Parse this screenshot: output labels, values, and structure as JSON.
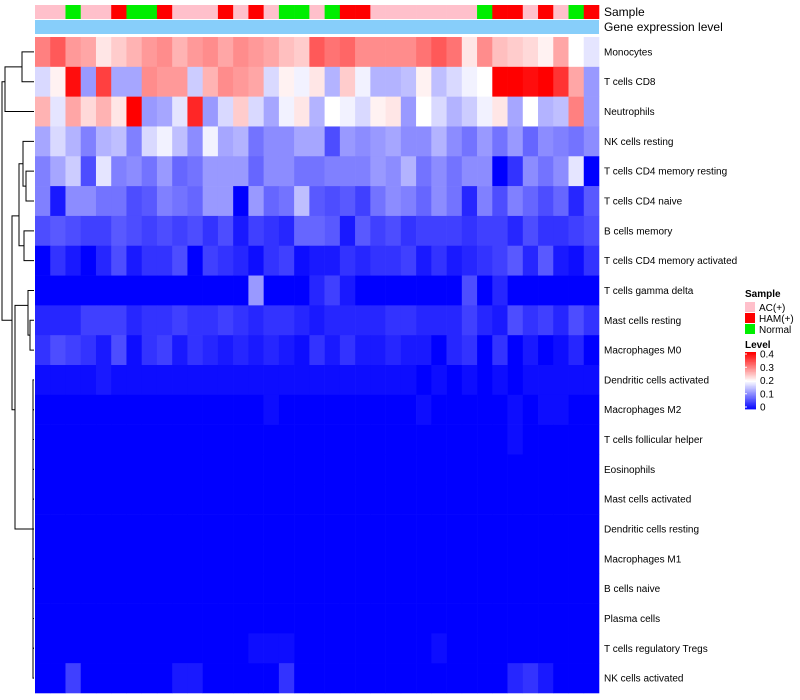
{
  "chart_data": {
    "type": "heatmap",
    "title": "",
    "annotation_labels": {
      "sample": "Sample",
      "gene_expression": "Gene expression level"
    },
    "rows": [
      "Monocytes",
      "T cells CD8",
      "Neutrophils",
      "NK cells resting",
      "T cells CD4 memory resting",
      "T cells CD4 naive",
      "B cells memory",
      "T cells CD4 memory activated",
      "T cells gamma delta",
      "Mast cells resting",
      "Macrophages M0",
      "Dendritic cells activated",
      "Macrophages M2",
      "T cells follicular helper",
      "Eosinophils",
      "Mast cells activated",
      "Dendritic cells resting",
      "Macrophages M1",
      "B cells naive",
      "Plasma cells",
      "T cells regulatory  Tregs",
      "NK cells activated"
    ],
    "sample_groups": [
      "AC(+)",
      "AC(+)",
      "Normal",
      "AC(+)",
      "AC(+)",
      "HAM(+)",
      "Normal",
      "Normal",
      "HAM(+)",
      "AC(+)",
      "AC(+)",
      "AC(+)",
      "HAM(+)",
      "AC(+)",
      "HAM(+)",
      "AC(+)",
      "Normal",
      "Normal",
      "AC(+)",
      "Normal",
      "HAM(+)",
      "HAM(+)",
      "AC(+)",
      "AC(+)",
      "AC(+)",
      "AC(+)",
      "AC(+)",
      "AC(+)",
      "AC(+)",
      "Normal",
      "HAM(+)",
      "HAM(+)",
      "AC(+)",
      "HAM(+)",
      "AC(+)",
      "Normal",
      "HAM(+)"
    ],
    "values": [
      [
        0.3,
        0.33,
        0.28,
        0.27,
        0.22,
        0.24,
        0.26,
        0.28,
        0.29,
        0.26,
        0.28,
        0.29,
        0.27,
        0.29,
        0.28,
        0.27,
        0.25,
        0.24,
        0.33,
        0.31,
        0.32,
        0.29,
        0.29,
        0.29,
        0.29,
        0.31,
        0.33,
        0.31,
        0.22,
        0.29,
        0.25,
        0.24,
        0.23,
        0.21,
        0.27,
        0.2,
        0.18
      ],
      [
        0.17,
        0.21,
        0.39,
        0.12,
        0.35,
        0.13,
        0.13,
        0.29,
        0.28,
        0.28,
        0.16,
        0.26,
        0.29,
        0.28,
        0.27,
        0.17,
        0.21,
        0.19,
        0.22,
        0.14,
        0.24,
        0.19,
        0.14,
        0.14,
        0.15,
        0.21,
        0.15,
        0.17,
        0.19,
        0.2,
        0.4,
        0.4,
        0.39,
        0.4,
        0.36,
        0.27,
        0.12
      ],
      [
        0.26,
        0.18,
        0.27,
        0.23,
        0.26,
        0.22,
        0.4,
        0.12,
        0.13,
        0.18,
        0.37,
        0.12,
        0.17,
        0.24,
        0.17,
        0.13,
        0.19,
        0.22,
        0.14,
        0.2,
        0.19,
        0.17,
        0.21,
        0.22,
        0.12,
        0.2,
        0.17,
        0.14,
        0.16,
        0.19,
        0.22,
        0.13,
        0.2,
        0.14,
        0.15,
        0.3,
        0.12
      ],
      [
        0.13,
        0.17,
        0.14,
        0.1,
        0.14,
        0.15,
        0.1,
        0.17,
        0.19,
        0.15,
        0.11,
        0.19,
        0.13,
        0.14,
        0.09,
        0.11,
        0.11,
        0.13,
        0.13,
        0.06,
        0.12,
        0.11,
        0.12,
        0.13,
        0.11,
        0.11,
        0.14,
        0.11,
        0.09,
        0.12,
        0.09,
        0.12,
        0.08,
        0.11,
        0.1,
        0.09,
        0.11
      ],
      [
        0.1,
        0.13,
        0.16,
        0.06,
        0.18,
        0.1,
        0.11,
        0.09,
        0.12,
        0.08,
        0.09,
        0.12,
        0.12,
        0.12,
        0.08,
        0.11,
        0.11,
        0.09,
        0.09,
        0.1,
        0.1,
        0.1,
        0.12,
        0.11,
        0.14,
        0.09,
        0.11,
        0.09,
        0.11,
        0.11,
        0.0,
        0.04,
        0.11,
        0.09,
        0.11,
        0.18,
        0.0
      ],
      [
        0.1,
        0.02,
        0.11,
        0.11,
        0.09,
        0.09,
        0.06,
        0.07,
        0.1,
        0.09,
        0.08,
        0.12,
        0.12,
        0.0,
        0.12,
        0.08,
        0.09,
        0.15,
        0.07,
        0.06,
        0.07,
        0.05,
        0.09,
        0.11,
        0.1,
        0.08,
        0.11,
        0.09,
        0.03,
        0.1,
        0.06,
        0.1,
        0.08,
        0.06,
        0.08,
        0.03,
        0.07
      ],
      [
        0.06,
        0.07,
        0.06,
        0.05,
        0.05,
        0.07,
        0.06,
        0.05,
        0.06,
        0.05,
        0.06,
        0.04,
        0.06,
        0.02,
        0.05,
        0.04,
        0.03,
        0.08,
        0.08,
        0.07,
        0.02,
        0.07,
        0.05,
        0.06,
        0.04,
        0.05,
        0.05,
        0.05,
        0.04,
        0.05,
        0.05,
        0.03,
        0.06,
        0.04,
        0.04,
        0.05,
        0.06
      ],
      [
        0.0,
        0.04,
        0.02,
        0.0,
        0.03,
        0.06,
        0.02,
        0.04,
        0.04,
        0.06,
        0.0,
        0.05,
        0.04,
        0.03,
        0.01,
        0.04,
        0.05,
        0.01,
        0.02,
        0.02,
        0.04,
        0.03,
        0.04,
        0.04,
        0.05,
        0.02,
        0.04,
        0.02,
        0.03,
        0.04,
        0.05,
        0.07,
        0.03,
        0.07,
        0.02,
        0.01,
        0.04
      ],
      [
        0.0,
        0.0,
        0.0,
        0.0,
        0.0,
        0.0,
        0.0,
        0.0,
        0.0,
        0.0,
        0.0,
        0.0,
        0.0,
        0.0,
        0.12,
        0.0,
        0.0,
        0.0,
        0.03,
        0.05,
        0.02,
        0.0,
        0.0,
        0.0,
        0.0,
        0.0,
        0.0,
        0.0,
        0.06,
        0.0,
        0.03,
        0.0,
        0.0,
        0.0,
        0.0,
        0.0,
        0.0
      ],
      [
        0.03,
        0.03,
        0.03,
        0.05,
        0.05,
        0.05,
        0.03,
        0.04,
        0.04,
        0.05,
        0.04,
        0.04,
        0.05,
        0.04,
        0.03,
        0.04,
        0.04,
        0.03,
        0.02,
        0.03,
        0.03,
        0.03,
        0.03,
        0.04,
        0.04,
        0.03,
        0.03,
        0.03,
        0.05,
        0.03,
        0.02,
        0.06,
        0.04,
        0.05,
        0.03,
        0.06,
        0.04
      ],
      [
        0.04,
        0.06,
        0.05,
        0.04,
        0.02,
        0.06,
        0.01,
        0.04,
        0.05,
        0.02,
        0.04,
        0.03,
        0.02,
        0.03,
        0.02,
        0.03,
        0.02,
        0.01,
        0.04,
        0.02,
        0.04,
        0.02,
        0.02,
        0.03,
        0.02,
        0.02,
        0.0,
        0.03,
        0.04,
        0.0,
        0.04,
        0.0,
        0.02,
        0.0,
        0.01,
        0.03,
        0.0
      ],
      [
        0.01,
        0.01,
        0.01,
        0.01,
        0.02,
        0.01,
        0.01,
        0.01,
        0.01,
        0.01,
        0.01,
        0.01,
        0.01,
        0.01,
        0.01,
        0.01,
        0.01,
        0.01,
        0.01,
        0.01,
        0.01,
        0.01,
        0.01,
        0.01,
        0.01,
        0.0,
        0.01,
        0.0,
        0.01,
        0.0,
        0.01,
        0.0,
        0.01,
        0.01,
        0.01,
        0.01,
        0.01
      ],
      [
        0.0,
        0.0,
        0.0,
        0.0,
        0.0,
        0.0,
        0.0,
        0.0,
        0.0,
        0.0,
        0.0,
        0.0,
        0.0,
        0.0,
        0.0,
        0.01,
        0.0,
        0.0,
        0.0,
        0.0,
        0.0,
        0.0,
        0.0,
        0.0,
        0.0,
        0.01,
        0.0,
        0.0,
        0.0,
        0.0,
        0.0,
        0.01,
        0.0,
        0.01,
        0.01,
        0.0,
        0.0
      ],
      [
        0.0,
        0.0,
        0.0,
        0.0,
        0.0,
        0.0,
        0.0,
        0.0,
        0.0,
        0.0,
        0.0,
        0.0,
        0.0,
        0.0,
        0.0,
        0.0,
        0.0,
        0.0,
        0.0,
        0.0,
        0.0,
        0.0,
        0.0,
        0.0,
        0.0,
        0.0,
        0.0,
        0.0,
        0.0,
        0.0,
        0.0,
        0.01,
        0.0,
        0.0,
        0.0,
        0.0,
        0.0
      ],
      [
        0.0,
        0.0,
        0.0,
        0.0,
        0.0,
        0.0,
        0.0,
        0.0,
        0.0,
        0.0,
        0.0,
        0.0,
        0.0,
        0.0,
        0.0,
        0.0,
        0.0,
        0.0,
        0.0,
        0.0,
        0.0,
        0.0,
        0.0,
        0.0,
        0.0,
        0.0,
        0.0,
        0.0,
        0.0,
        0.0,
        0.0,
        0.0,
        0.0,
        0.0,
        0.0,
        0.0,
        0.0
      ],
      [
        0.0,
        0.0,
        0.0,
        0.0,
        0.0,
        0.0,
        0.0,
        0.0,
        0.0,
        0.0,
        0.0,
        0.0,
        0.0,
        0.0,
        0.0,
        0.0,
        0.0,
        0.0,
        0.0,
        0.0,
        0.0,
        0.0,
        0.0,
        0.0,
        0.0,
        0.0,
        0.0,
        0.0,
        0.0,
        0.0,
        0.0,
        0.0,
        0.0,
        0.0,
        0.0,
        0.0,
        0.0
      ],
      [
        0.0,
        0.0,
        0.0,
        0.0,
        0.0,
        0.0,
        0.0,
        0.0,
        0.0,
        0.0,
        0.0,
        0.0,
        0.0,
        0.0,
        0.0,
        0.0,
        0.0,
        0.0,
        0.0,
        0.0,
        0.0,
        0.0,
        0.0,
        0.0,
        0.0,
        0.0,
        0.0,
        0.0,
        0.0,
        0.0,
        0.0,
        0.0,
        0.0,
        0.0,
        0.0,
        0.0,
        0.0
      ],
      [
        0.0,
        0.0,
        0.0,
        0.0,
        0.0,
        0.0,
        0.0,
        0.0,
        0.0,
        0.0,
        0.0,
        0.0,
        0.0,
        0.0,
        0.0,
        0.0,
        0.0,
        0.0,
        0.0,
        0.0,
        0.0,
        0.0,
        0.0,
        0.0,
        0.0,
        0.0,
        0.0,
        0.0,
        0.0,
        0.0,
        0.0,
        0.0,
        0.0,
        0.0,
        0.0,
        0.0,
        0.0
      ],
      [
        0.0,
        0.0,
        0.0,
        0.0,
        0.0,
        0.0,
        0.0,
        0.0,
        0.0,
        0.0,
        0.0,
        0.0,
        0.0,
        0.0,
        0.0,
        0.0,
        0.0,
        0.0,
        0.0,
        0.0,
        0.0,
        0.0,
        0.0,
        0.0,
        0.0,
        0.0,
        0.0,
        0.0,
        0.0,
        0.0,
        0.0,
        0.0,
        0.0,
        0.0,
        0.0,
        0.0,
        0.0
      ],
      [
        0.0,
        0.0,
        0.0,
        0.0,
        0.0,
        0.0,
        0.0,
        0.0,
        0.0,
        0.0,
        0.0,
        0.0,
        0.0,
        0.0,
        0.0,
        0.0,
        0.0,
        0.0,
        0.0,
        0.0,
        0.0,
        0.0,
        0.0,
        0.0,
        0.0,
        0.0,
        0.0,
        0.0,
        0.0,
        0.0,
        0.0,
        0.0,
        0.0,
        0.0,
        0.0,
        0.0,
        0.0
      ],
      [
        0.0,
        0.0,
        0.0,
        0.0,
        0.0,
        0.0,
        0.0,
        0.0,
        0.0,
        0.0,
        0.0,
        0.0,
        0.0,
        0.0,
        0.01,
        0.01,
        0.01,
        0.0,
        0.0,
        0.0,
        0.0,
        0.0,
        0.0,
        0.0,
        0.0,
        0.0,
        0.01,
        0.0,
        0.0,
        0.0,
        0.0,
        0.0,
        0.0,
        0.0,
        0.0,
        0.0,
        0.0
      ],
      [
        0.0,
        0.0,
        0.05,
        0.0,
        0.0,
        0.0,
        0.0,
        0.0,
        0.0,
        0.02,
        0.02,
        0.0,
        0.0,
        0.0,
        0.0,
        0.0,
        0.04,
        0.0,
        0.0,
        0.0,
        0.0,
        0.0,
        0.0,
        0.0,
        0.0,
        0.0,
        0.0,
        0.0,
        0.0,
        0.0,
        0.0,
        0.03,
        0.04,
        0.02,
        0.0,
        0.0,
        0.0
      ]
    ],
    "color_scale": {
      "min": 0,
      "max": 0.4,
      "low": "#0000ff",
      "mid": "#ffffff",
      "high": "#ff0000",
      "mid_value": 0.2
    },
    "sample_colors": {
      "AC(+)": "#ffc0cb",
      "HAM(+)": "#ff0000",
      "Normal": "#00ee00"
    },
    "gene_expression_color": "#87cefa",
    "legend": {
      "sample_title": "Sample",
      "sample_entries": [
        "AC(+)",
        "HAM(+)",
        "Normal"
      ],
      "level_title": "Level",
      "level_ticks": [
        "0.4",
        "0.3",
        "0.2",
        "0.1",
        "0"
      ]
    }
  }
}
